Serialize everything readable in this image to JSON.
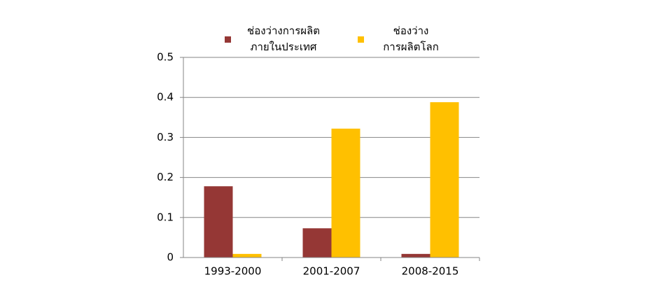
{
  "chart_data": {
    "type": "bar",
    "categories": [
      "1993-2000",
      "2001-2007",
      "2008-2015"
    ],
    "series": [
      {
        "name": "ช่องว่างการผลิต\nภายในประเทศ",
        "color": "#953735",
        "values": [
          0.178,
          0.073,
          0.009
        ]
      },
      {
        "name": "ช่องว่าง\nการผลิตโลก",
        "color": "#ffc000",
        "values": [
          0.009,
          0.322,
          0.388
        ]
      }
    ],
    "ylim": [
      0,
      0.5
    ],
    "yticks": [
      0,
      0.1,
      0.2,
      0.3,
      0.4,
      0.5
    ],
    "grid": true,
    "legend": "top"
  }
}
